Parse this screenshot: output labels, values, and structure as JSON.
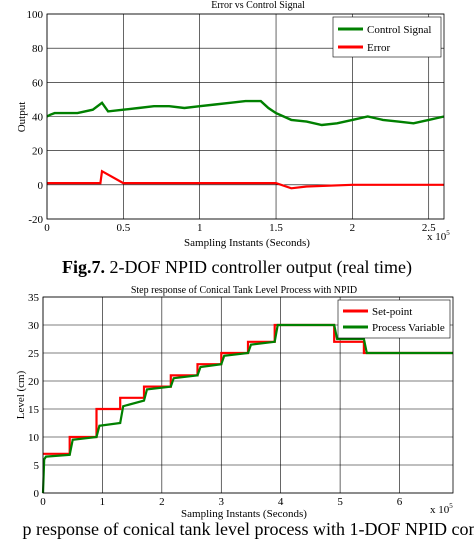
{
  "chart_data": [
    {
      "type": "line",
      "title": "Error vs Control Signal",
      "xlabel": "Sampling Instants (Seconds)",
      "ylabel": "Output",
      "x_multiplier": "x 10",
      "x_multiplier_exp": "5",
      "xlim": [
        0,
        2.6
      ],
      "ylim": [
        -20,
        100
      ],
      "xticks": [
        "0",
        "0.5",
        "1",
        "1.5",
        "2",
        "2.5"
      ],
      "yticks": [
        "-20",
        "0",
        "20",
        "40",
        "60",
        "80",
        "100"
      ],
      "grid": true,
      "legend_position": "top-right",
      "series": [
        {
          "name": "Control Signal",
          "color": "#008000",
          "x": [
            0,
            0.02,
            0.05,
            0.1,
            0.2,
            0.3,
            0.36,
            0.4,
            0.5,
            0.6,
            0.7,
            0.8,
            0.9,
            1.0,
            1.1,
            1.2,
            1.3,
            1.4,
            1.45,
            1.5,
            1.55,
            1.6,
            1.7,
            1.8,
            1.9,
            2.0,
            2.1,
            2.2,
            2.3,
            2.4,
            2.5,
            2.6
          ],
          "y": [
            40,
            41,
            42,
            42,
            42,
            44,
            48,
            43,
            44,
            45,
            46,
            46,
            45,
            46,
            47,
            48,
            49,
            49,
            45,
            42,
            40,
            38,
            37,
            35,
            36,
            38,
            40,
            38,
            37,
            36,
            38,
            40
          ]
        },
        {
          "name": "Error",
          "color": "#ff0000",
          "x": [
            0,
            0.2,
            0.35,
            0.36,
            0.5,
            0.64,
            0.7,
            0.8,
            0.9,
            1.0,
            1.05,
            1.2,
            1.3,
            1.4,
            1.5,
            1.6,
            1.7,
            2.0,
            2.2,
            2.4,
            2.5,
            2.6
          ],
          "y": [
            1,
            1,
            1,
            8,
            1,
            1,
            1,
            1,
            1,
            1,
            1,
            1,
            1,
            1,
            1,
            -2,
            -1,
            0,
            0,
            0,
            0,
            0
          ]
        }
      ]
    },
    {
      "type": "line",
      "title": "Step response of Conical Tank Level Process with NPID",
      "xlabel": "Sampling Instants (Seconds)",
      "ylabel": "Level (cm)",
      "x_multiplier": "x 10",
      "x_multiplier_exp": "5",
      "xlim": [
        0,
        6.9
      ],
      "ylim": [
        0,
        35
      ],
      "xticks": [
        "0",
        "1",
        "2",
        "3",
        "4",
        "5",
        "6"
      ],
      "yticks": [
        "0",
        "5",
        "10",
        "15",
        "20",
        "25",
        "30",
        "35"
      ],
      "grid": true,
      "legend_position": "top-right",
      "series": [
        {
          "name": "Set-point",
          "color": "#ff0000",
          "x": [
            0,
            0.45,
            0.45,
            0.9,
            0.9,
            1.3,
            1.3,
            1.7,
            1.7,
            2.15,
            2.15,
            2.6,
            2.6,
            3.0,
            3.0,
            3.45,
            3.45,
            3.9,
            3.9,
            4.9,
            4.9,
            5.4,
            5.4,
            6.9
          ],
          "y": [
            7,
            7,
            10,
            10,
            15,
            15,
            17,
            17,
            19,
            19,
            21,
            21,
            23,
            23,
            25,
            25,
            27,
            27,
            30,
            30,
            27,
            27,
            25,
            25
          ]
        },
        {
          "name": "Process Variable",
          "color": "#008000",
          "x": [
            0,
            0.02,
            0.05,
            0.45,
            0.5,
            0.9,
            0.95,
            1.3,
            1.35,
            1.7,
            1.75,
            2.15,
            2.2,
            2.6,
            2.65,
            3.0,
            3.05,
            3.45,
            3.5,
            3.9,
            3.95,
            4.9,
            4.95,
            5.4,
            5.45,
            6.9
          ],
          "y": [
            0,
            6,
            6.5,
            6.8,
            9.5,
            10,
            12,
            12.5,
            15.5,
            16.5,
            18.5,
            19,
            20.5,
            21,
            22.5,
            23,
            24.5,
            25,
            26.5,
            27,
            30,
            30,
            27.5,
            27.5,
            25,
            25
          ]
        }
      ]
    }
  ],
  "captions": {
    "fig7_label": "Fig.7.",
    "fig7_text": " 2-DOF NPID controller output (real time)",
    "fig8_text": "p response of conical tank level process with 1-DOF NPID con"
  }
}
